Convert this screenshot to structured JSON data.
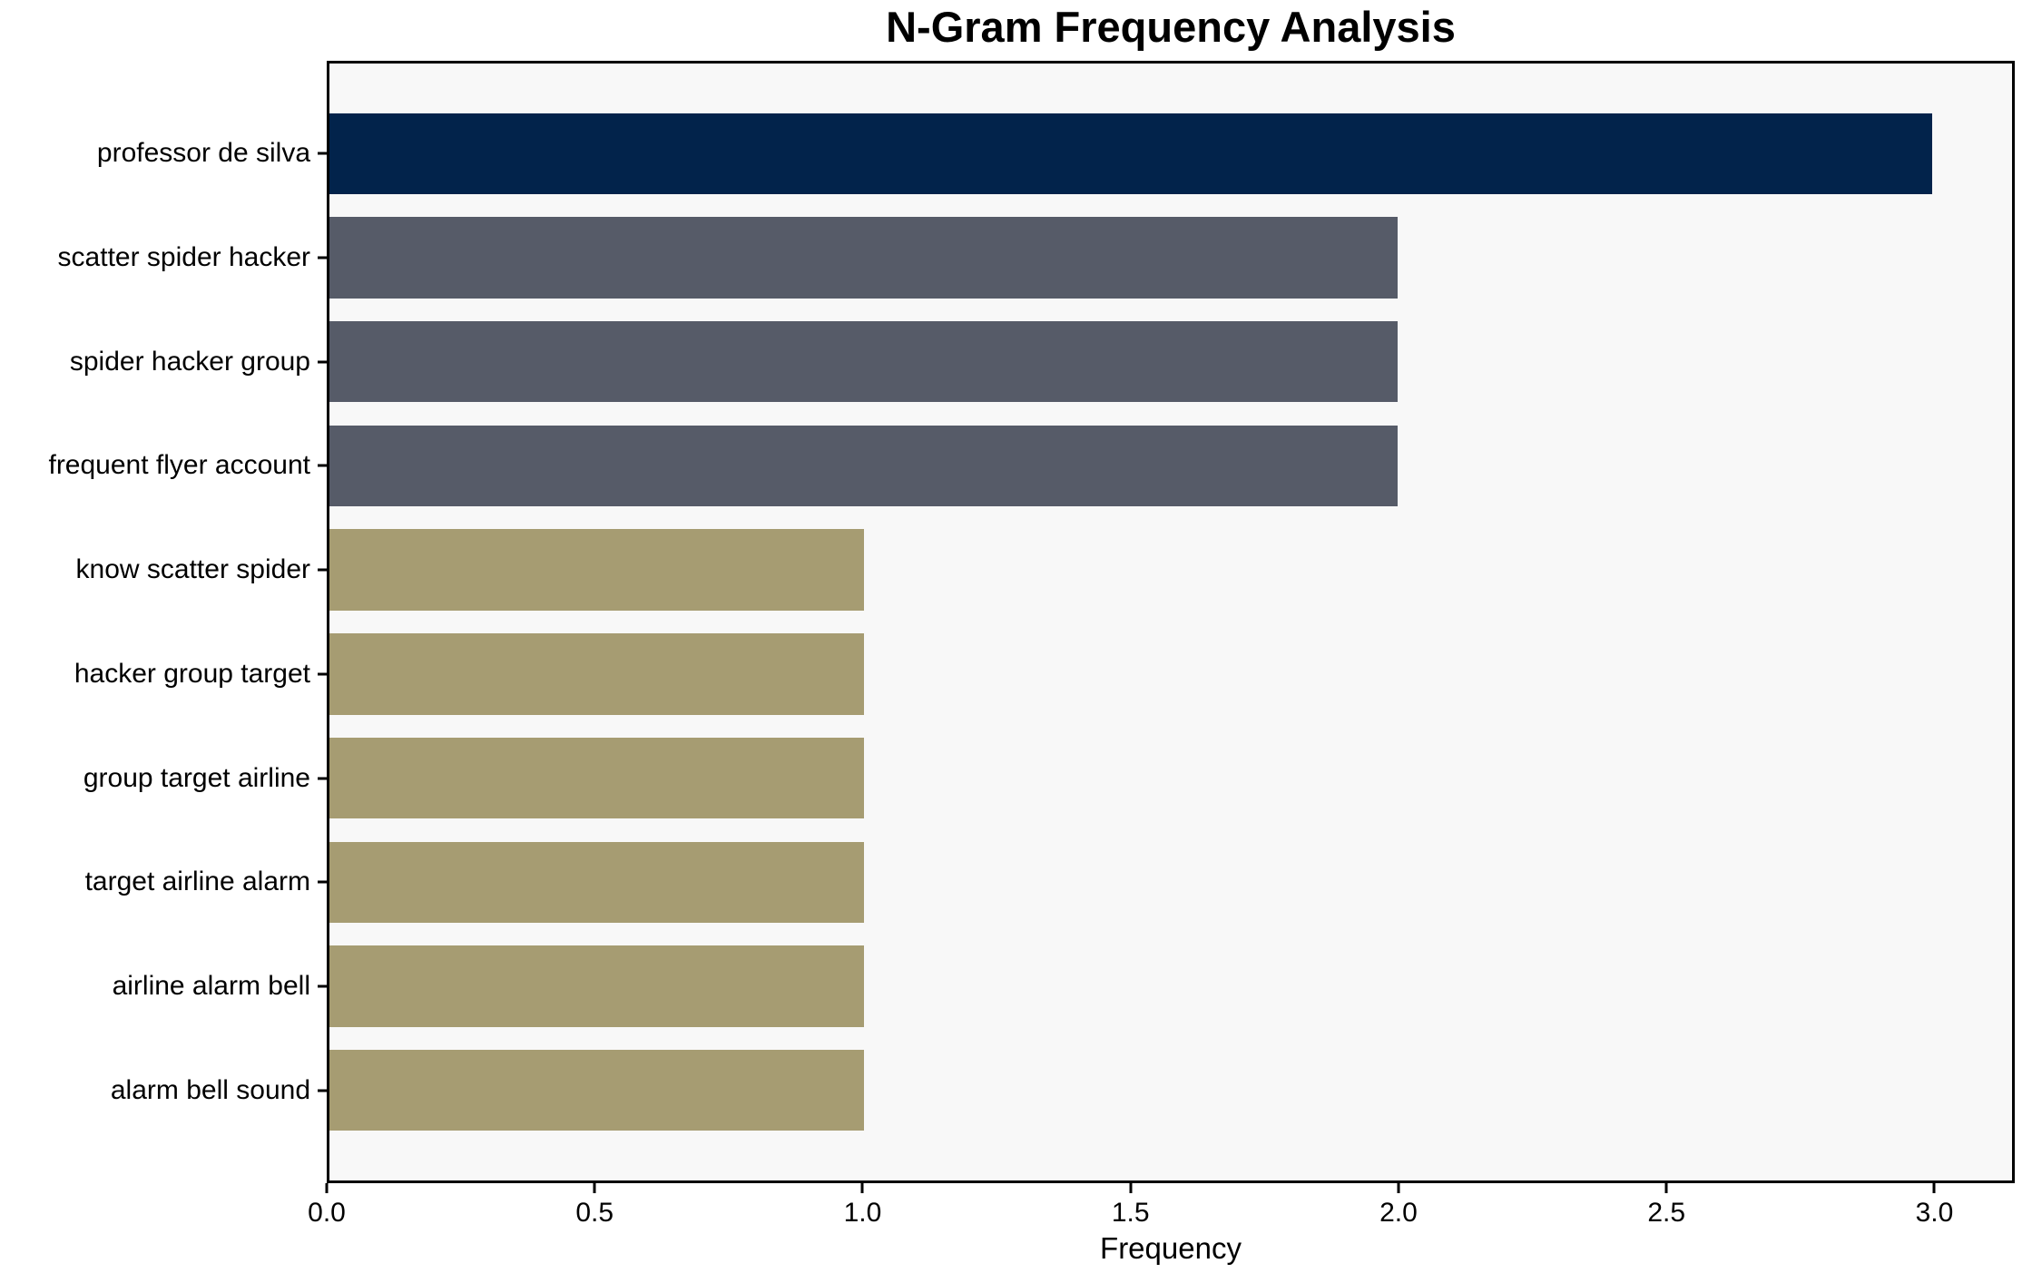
{
  "title": "N-Gram Frequency Analysis",
  "chart_data": {
    "type": "bar",
    "orientation": "horizontal",
    "title": "N-Gram Frequency Analysis",
    "xlabel": "Frequency",
    "ylabel": "",
    "categories": [
      "professor de silva",
      "scatter spider hacker",
      "spider hacker group",
      "frequent flyer account",
      "know scatter spider",
      "hacker group target",
      "group target airline",
      "target airline alarm",
      "airline alarm bell",
      "alarm bell sound"
    ],
    "values": [
      3,
      2,
      2,
      2,
      1,
      1,
      1,
      1,
      1,
      1
    ],
    "bar_colors": [
      "#02234b",
      "#565b68",
      "#565b68",
      "#565b68",
      "#a69c72",
      "#a69c72",
      "#a69c72",
      "#a69c72",
      "#a69c72",
      "#a69c72"
    ],
    "xlim": [
      0,
      3.15
    ],
    "x_ticks": [
      {
        "value": 0.0,
        "label": "0.0"
      },
      {
        "value": 0.5,
        "label": "0.5"
      },
      {
        "value": 1.0,
        "label": "1.0"
      },
      {
        "value": 1.5,
        "label": "1.5"
      },
      {
        "value": 2.0,
        "label": "2.0"
      },
      {
        "value": 2.5,
        "label": "2.5"
      },
      {
        "value": 3.0,
        "label": "3.0"
      }
    ],
    "grid": false,
    "legend": "none",
    "plot_background": "#f8f8f8",
    "figure_background": "#ffffff",
    "spine_color": "#000000",
    "bar_height_fraction": 0.78
  }
}
